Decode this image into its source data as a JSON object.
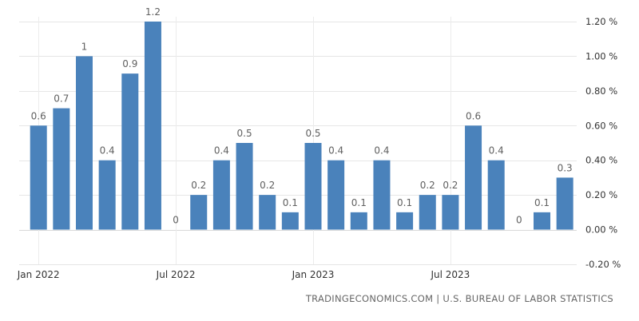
{
  "source": "TRADINGECONOMICS.COM | U.S. BUREAU OF LABOR STATISTICS",
  "colors": {
    "bar": "#4a82bb",
    "grid": "#e6e6e6",
    "label": "#606060"
  },
  "chart_data": {
    "type": "bar",
    "title": "",
    "xlabel": "",
    "ylabel": "",
    "ylim": [
      -0.2,
      1.2
    ],
    "yticks": [
      -0.2,
      0,
      0.2,
      0.4,
      0.6,
      0.8,
      1.0,
      1.2
    ],
    "ytick_labels": [
      "-0.20 %",
      "0.00 %",
      "0.20 %",
      "0.40 %",
      "0.60 %",
      "0.80 %",
      "1.00 %",
      "1.20 %"
    ],
    "x_tick_labels": [
      {
        "label": "Jan 2022",
        "index": 0
      },
      {
        "label": "Jul 2022",
        "index": 6
      },
      {
        "label": "Jan 2023",
        "index": 12
      },
      {
        "label": "Jul 2023",
        "index": 18
      }
    ],
    "categories": [
      "2022-01",
      "2022-02",
      "2022-03",
      "2022-04",
      "2022-05",
      "2022-06",
      "2022-07",
      "2022-08",
      "2022-09",
      "2022-10",
      "2022-11",
      "2022-12",
      "2023-01",
      "2023-02",
      "2023-03",
      "2023-04",
      "2023-05",
      "2023-06",
      "2023-07",
      "2023-08",
      "2023-09",
      "2023-10",
      "2023-11",
      "2023-12"
    ],
    "values": [
      0.6,
      0.7,
      1.0,
      0.4,
      0.9,
      1.2,
      0.0,
      0.2,
      0.4,
      0.5,
      0.2,
      0.1,
      0.5,
      0.4,
      0.1,
      0.4,
      0.1,
      0.2,
      0.2,
      0.6,
      0.4,
      0.0,
      0.1,
      0.3
    ],
    "data_labels": [
      "0.6",
      "0.7",
      "1",
      "0.4",
      "0.9",
      "1.2",
      "0",
      "0.2",
      "0.4",
      "0.5",
      "0.2",
      "0.1",
      "0.5",
      "0.4",
      "0.1",
      "0.4",
      "0.1",
      "0.2",
      "0.2",
      "0.6",
      "0.4",
      "0",
      "0.1",
      "0.3"
    ],
    "grid": true,
    "legend": "none"
  }
}
